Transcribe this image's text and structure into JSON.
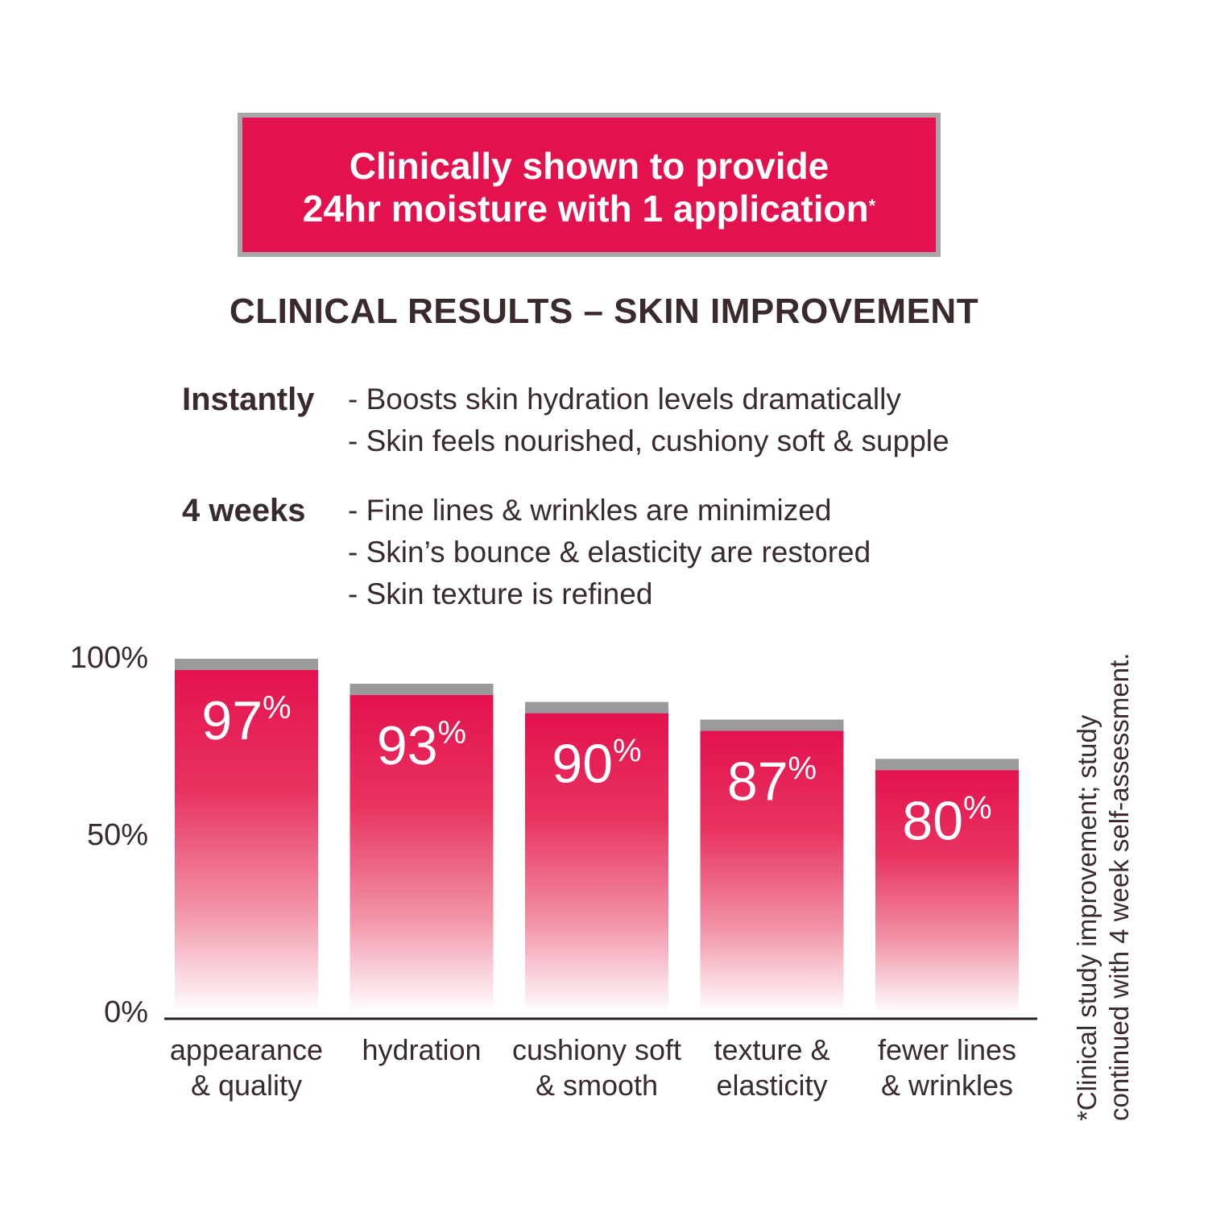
{
  "banner": {
    "line1": "Clinically shown to provide",
    "line2": "24hr moisture with 1 application",
    "marker": "*"
  },
  "heading": "CLINICAL RESULTS – SKIN IMPROVEMENT",
  "claims": [
    {
      "label": "Instantly",
      "items": [
        "Boosts skin hydration levels dramatically",
        "Skin feels nourished, cushiony soft & supple"
      ]
    },
    {
      "label": "4 weeks",
      "items": [
        "Fine lines & wrinkles are minimized",
        "Skin’s bounce & elasticity are restored",
        "Skin texture is refined"
      ]
    }
  ],
  "footnote": {
    "line1": "*Clinical study improvement; study",
    "line2": "continued with 4 week self-assessment."
  },
  "colors": {
    "bar": "#e3124f",
    "cap": "#9a999c",
    "banner": "#e3124f",
    "text": "#3a2a2c"
  },
  "chart_data": {
    "type": "bar",
    "ylim": [
      0,
      100
    ],
    "yticks": [
      "100%",
      "50%",
      "0%"
    ],
    "categories": [
      [
        "appearance",
        "& quality"
      ],
      [
        "hydration"
      ],
      [
        "cushiony soft",
        "& smooth"
      ],
      [
        "texture &",
        "elasticity"
      ],
      [
        "fewer lines",
        "& wrinkles"
      ]
    ],
    "values": [
      97,
      93,
      90,
      87,
      80
    ],
    "value_labels": [
      "97%",
      "93%",
      "90%",
      "87%",
      "80%"
    ],
    "grid": false,
    "legend": "none"
  }
}
